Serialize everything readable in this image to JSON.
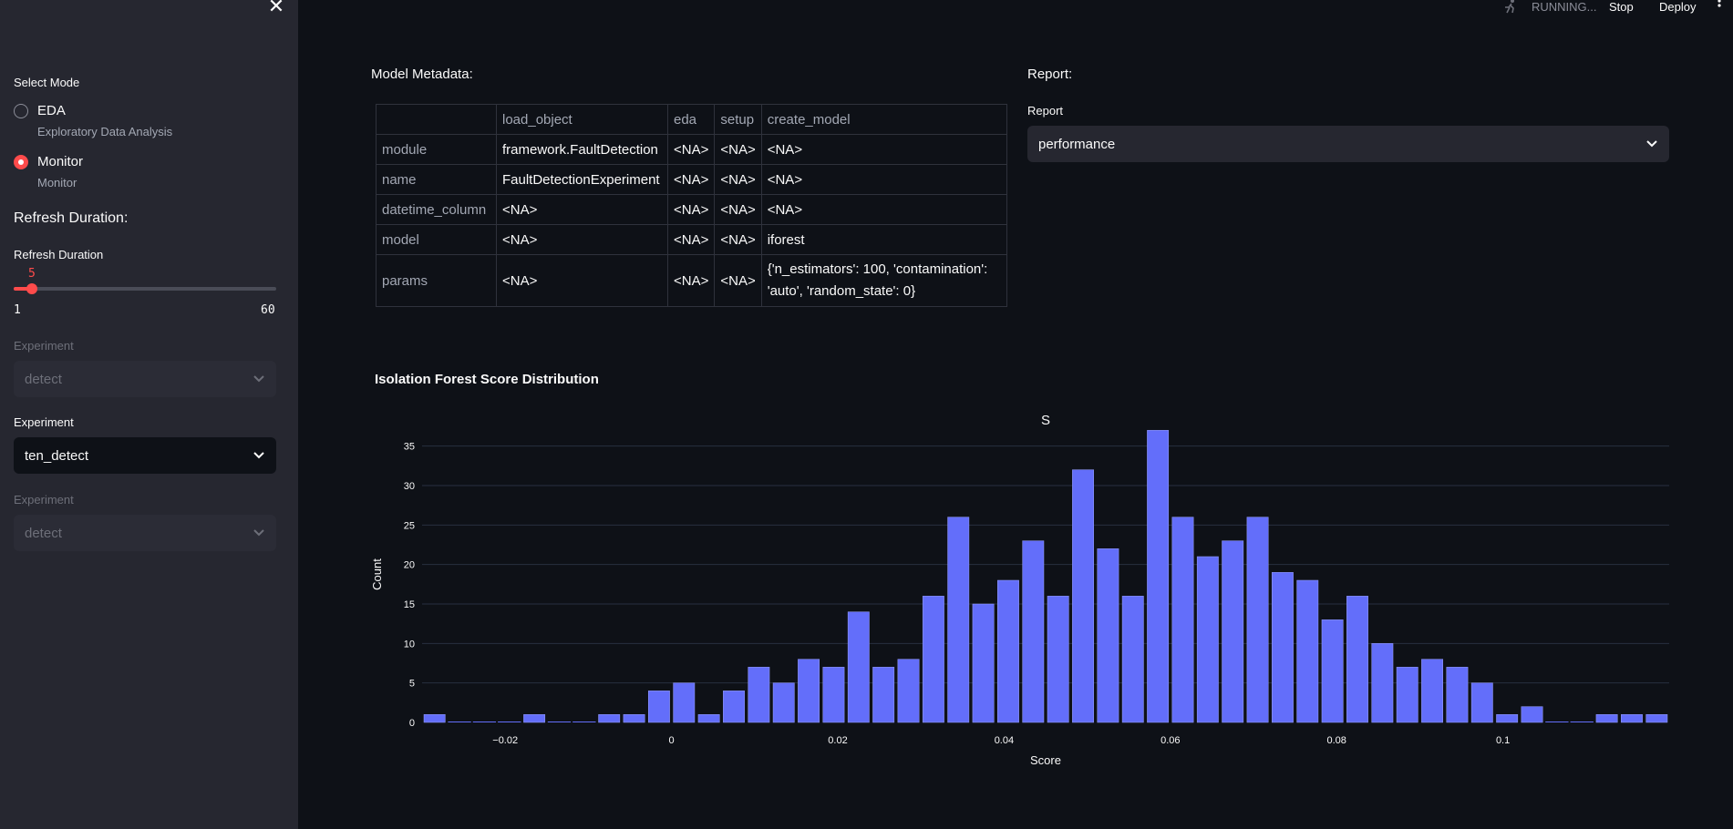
{
  "sidebar": {
    "select_mode_label": "Select Mode",
    "modes": [
      {
        "label": "EDA",
        "caption": "Exploratory Data Analysis",
        "selected": false
      },
      {
        "label": "Monitor",
        "caption": "Monitor",
        "selected": true
      }
    ],
    "refresh_heading": "Refresh Duration:",
    "refresh_label": "Refresh Duration",
    "refresh_value": "5",
    "refresh_min": "1",
    "refresh_max": "60",
    "experiments": [
      {
        "label": "Experiment",
        "value": "detect",
        "disabled": true
      },
      {
        "label": "Experiment",
        "value": "ten_detect",
        "disabled": false
      },
      {
        "label": "Experiment",
        "value": "detect",
        "disabled": true
      }
    ]
  },
  "topbar": {
    "status": "RUNNING...",
    "stop": "Stop",
    "deploy": "Deploy"
  },
  "main": {
    "metadata_label": "Model Metadata:",
    "report_label": "Report:",
    "report_select_label": "Report",
    "report_value": "performance",
    "table": {
      "columns": [
        "",
        "load_object",
        "eda",
        "setup",
        "create_model"
      ],
      "rows": [
        [
          "module",
          "framework.FaultDetection",
          "<NA>",
          "<NA>",
          "<NA>"
        ],
        [
          "name",
          "FaultDetectionExperiment",
          "<NA>",
          "<NA>",
          "<NA>"
        ],
        [
          "datetime_column",
          "<NA>",
          "<NA>",
          "<NA>",
          "<NA>"
        ],
        [
          "model",
          "<NA>",
          "<NA>",
          "<NA>",
          "iforest"
        ],
        [
          "params",
          "<NA>",
          "<NA>",
          "<NA>",
          "{'n_estimators': 100, 'contamination': 'auto', 'random_state': 0}"
        ]
      ]
    },
    "chart_heading": "Isolation Forest Score Distribution"
  },
  "colors": {
    "accent": "#ff4b4b",
    "bar": "#636efa",
    "background": "#0e1117",
    "sidebar": "#262730"
  },
  "chart_data": {
    "type": "bar",
    "title": "S",
    "xlabel": "Score",
    "ylabel": "Count",
    "x_start": -0.03,
    "bin_width": 0.003,
    "values": [
      1,
      0,
      0,
      0,
      1,
      0,
      0,
      1,
      1,
      4,
      5,
      1,
      4,
      7,
      5,
      8,
      7,
      14,
      7,
      8,
      16,
      26,
      15,
      18,
      23,
      16,
      32,
      22,
      16,
      37,
      26,
      21,
      23,
      26,
      19,
      18,
      13,
      16,
      10,
      7,
      8,
      7,
      5,
      1,
      2,
      0,
      0,
      1,
      1,
      1
    ],
    "ylim": [
      0,
      37
    ],
    "yticks": [
      0,
      5,
      10,
      15,
      20,
      25,
      30,
      35
    ],
    "xticks": [
      -0.02,
      0,
      0.02,
      0.04,
      0.06,
      0.08,
      0.1
    ],
    "xtick_labels": [
      "−0.02",
      "0",
      "0.02",
      "0.04",
      "0.06",
      "0.08",
      "0.1"
    ],
    "grid": true
  }
}
